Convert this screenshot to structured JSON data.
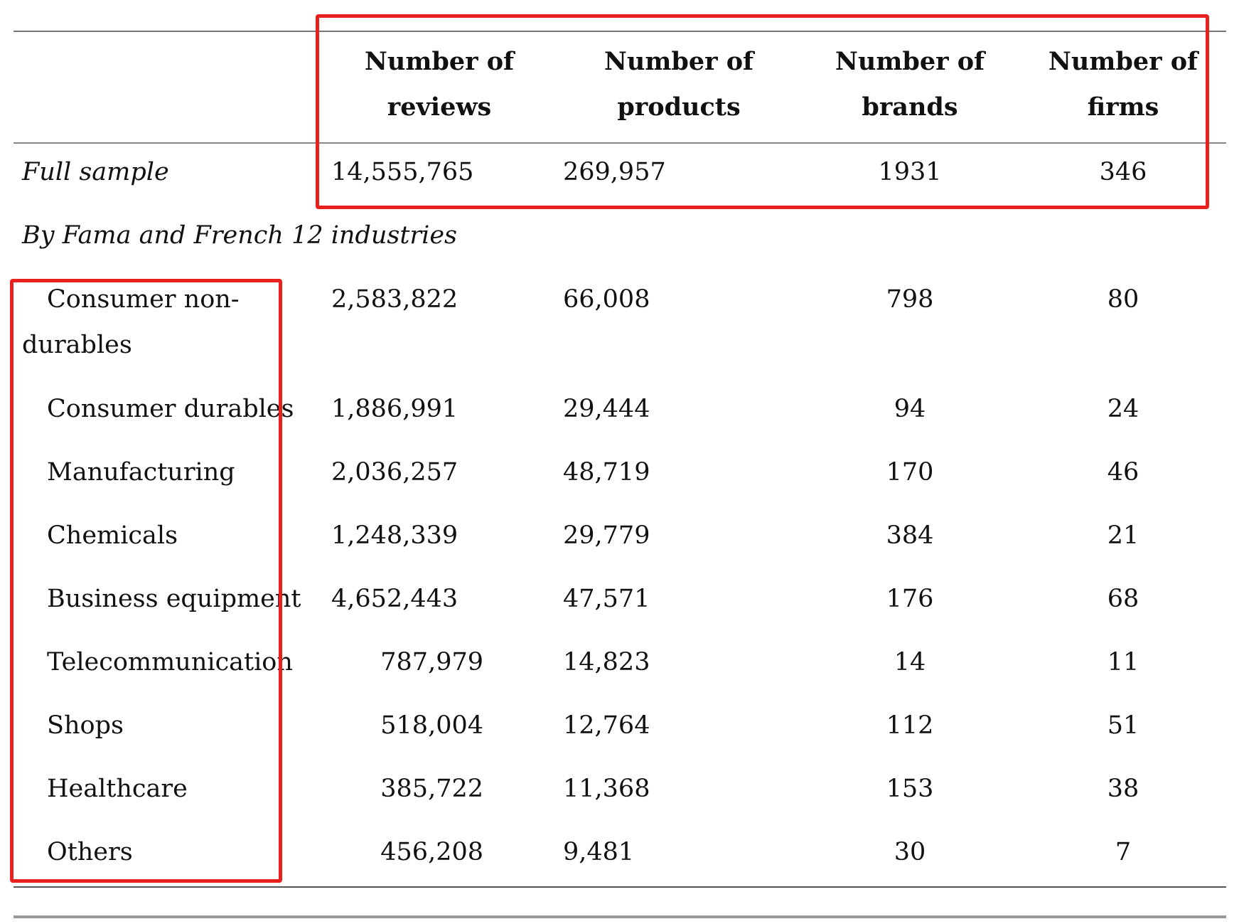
{
  "table": {
    "headers": {
      "reviews": [
        "Number of",
        "reviews"
      ],
      "products": [
        "Number of",
        "products"
      ],
      "brands": [
        "Number of",
        "brands"
      ],
      "firms": [
        "Number of",
        "firms"
      ]
    },
    "full_sample": {
      "label": "Full sample",
      "reviews": "14,555,765",
      "products": "269,957",
      "brands": "1931",
      "firms": "346"
    },
    "section_label": "By Fama and French 12 industries",
    "rows": [
      {
        "label_line1": "Consumer non-",
        "label_line2": "durables",
        "reviews": "2,583,822",
        "products": "66,008",
        "brands": "798",
        "firms": "80"
      },
      {
        "label": "Consumer durables",
        "reviews": "1,886,991",
        "products": "29,444",
        "brands": "94",
        "firms": "24"
      },
      {
        "label": "Manufacturing",
        "reviews": "2,036,257",
        "products": "48,719",
        "brands": "170",
        "firms": "46"
      },
      {
        "label": "Chemicals",
        "reviews": "1,248,339",
        "products": "29,779",
        "brands": "384",
        "firms": "21"
      },
      {
        "label": "Business equipment",
        "reviews": "4,652,443",
        "products": "47,571",
        "brands": "176",
        "firms": "68"
      },
      {
        "label": "Telecommunication",
        "reviews": "787,979",
        "products": "14,823",
        "brands": "14",
        "firms": "11"
      },
      {
        "label": "Shops",
        "reviews": "518,004",
        "products": "12,764",
        "brands": "112",
        "firms": "51"
      },
      {
        "label": "Healthcare",
        "reviews": "385,722",
        "products": "11,368",
        "brands": "153",
        "firms": "38"
      },
      {
        "label": "Others",
        "reviews": "456,208",
        "products": "9,481",
        "brands": "30",
        "firms": "7"
      }
    ]
  },
  "annotation_color": "#e8201e"
}
